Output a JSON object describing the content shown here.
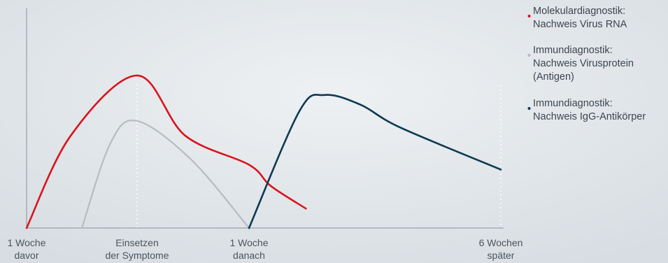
{
  "chart_data": {
    "type": "line",
    "title": "",
    "xlabel": "",
    "ylabel": "",
    "x_ticks": [
      {
        "lines": [
          "1 Woche",
          "davor"
        ]
      },
      {
        "lines": [
          "Einsetzen",
          "der Symptome"
        ]
      },
      {
        "lines": [
          "1 Woche",
          "danach"
        ]
      },
      {
        "lines": [
          "6 Wochen",
          "später"
        ]
      }
    ],
    "x_tick_days": [
      -7,
      0,
      7,
      42
    ],
    "y_range": [
      0,
      1
    ],
    "grid": "dotted vertical reference lines at 'Einsetzen der Symptome' and '6 Wochen später'",
    "legend_position": "top-right",
    "series": [
      {
        "name_lines": [
          "Molekulardiagnostik:",
          "Nachweis Virus RNA"
        ],
        "color": "#d9141e",
        "points": [
          [
            -7,
            0.0
          ],
          [
            -4.2,
            0.57
          ],
          [
            0,
            0.94
          ],
          [
            3,
            0.57
          ],
          [
            7,
            0.39
          ],
          [
            10,
            0.26
          ],
          [
            14.9,
            0.12
          ]
        ]
      },
      {
        "name_lines": [
          "Immundiagnostik:",
          "Nachweis Virusprotein",
          "(Antigen)"
        ],
        "color": "#b8bcbf",
        "points": [
          [
            -3.5,
            0.0
          ],
          [
            -1.7,
            0.52
          ],
          [
            0,
            0.66
          ],
          [
            3.4,
            0.42
          ],
          [
            7,
            0.0
          ]
        ]
      },
      {
        "name_lines": [
          "Immundiagnostik:",
          "Nachweis IgG-Antikörper"
        ],
        "color": "#0d3a52",
        "points": [
          [
            7,
            0.0
          ],
          [
            14,
            0.72
          ],
          [
            17.5,
            0.82
          ],
          [
            22.5,
            0.76
          ],
          [
            28,
            0.62
          ],
          [
            42,
            0.36
          ]
        ]
      }
    ]
  }
}
